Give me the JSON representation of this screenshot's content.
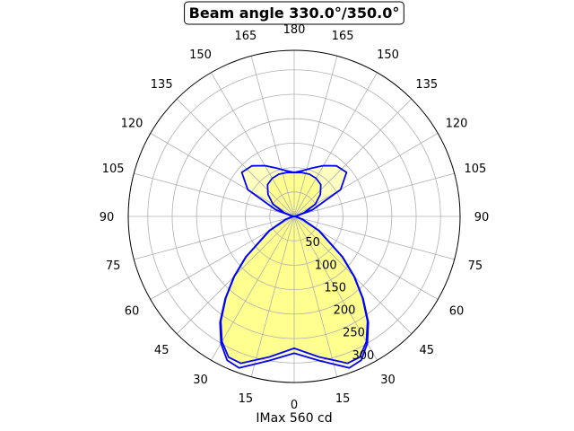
{
  "chart_data": {
    "type": "polar",
    "title": "Beam angle 330.0°/350.0°",
    "xlabel": "IMax 560 cd",
    "radial_max": 340,
    "radial_ticks": [
      50,
      100,
      150,
      200,
      250,
      300
    ],
    "angle_ticks": [
      {
        "deg": 0,
        "label": "0"
      },
      {
        "deg": 15,
        "label": "15"
      },
      {
        "deg": 30,
        "label": "30"
      },
      {
        "deg": 45,
        "label": "45"
      },
      {
        "deg": 60,
        "label": "60"
      },
      {
        "deg": 75,
        "label": "75"
      },
      {
        "deg": 90,
        "label": "90"
      },
      {
        "deg": 105,
        "label": "105"
      },
      {
        "deg": 120,
        "label": "120"
      },
      {
        "deg": 135,
        "label": "135"
      },
      {
        "deg": 150,
        "label": "150"
      },
      {
        "deg": 165,
        "label": "165"
      },
      {
        "deg": 180,
        "label": "180"
      },
      {
        "deg": -165,
        "label": "165"
      },
      {
        "deg": -150,
        "label": "150"
      },
      {
        "deg": -135,
        "label": "135"
      },
      {
        "deg": -120,
        "label": "120"
      },
      {
        "deg": -105,
        "label": "105"
      },
      {
        "deg": -90,
        "label": "90"
      },
      {
        "deg": -75,
        "label": "75"
      },
      {
        "deg": -60,
        "label": "60"
      },
      {
        "deg": -45,
        "label": "45"
      },
      {
        "deg": -30,
        "label": "30"
      },
      {
        "deg": -15,
        "label": "15"
      }
    ],
    "grid": true,
    "colors": {
      "line": "#0000ff",
      "fill": "#ffff00",
      "grid": "#b0b0b0"
    },
    "series": [
      {
        "angles": [
          0,
          10,
          20,
          25,
          30,
          35,
          40,
          45,
          50,
          60,
          70,
          80,
          90,
          100,
          110,
          120,
          130,
          140,
          150,
          160,
          170,
          180
        ],
        "values": [
          280,
          300,
          330,
          325,
          300,
          265,
          220,
          175,
          130,
          60,
          20,
          5,
          0,
          5,
          40,
          110,
          140,
          135,
          120,
          105,
          95,
          90
        ]
      },
      {
        "angles": [
          0,
          10,
          20,
          25,
          30,
          35,
          40,
          45,
          50,
          60,
          70,
          80,
          90,
          100,
          110,
          120,
          130,
          140,
          150,
          160,
          170,
          180
        ],
        "values": [
          270,
          292,
          320,
          318,
          296,
          262,
          218,
          173,
          128,
          58,
          18,
          4,
          0,
          4,
          22,
          50,
          70,
          85,
          90,
          92,
          91,
          90
        ]
      }
    ]
  }
}
